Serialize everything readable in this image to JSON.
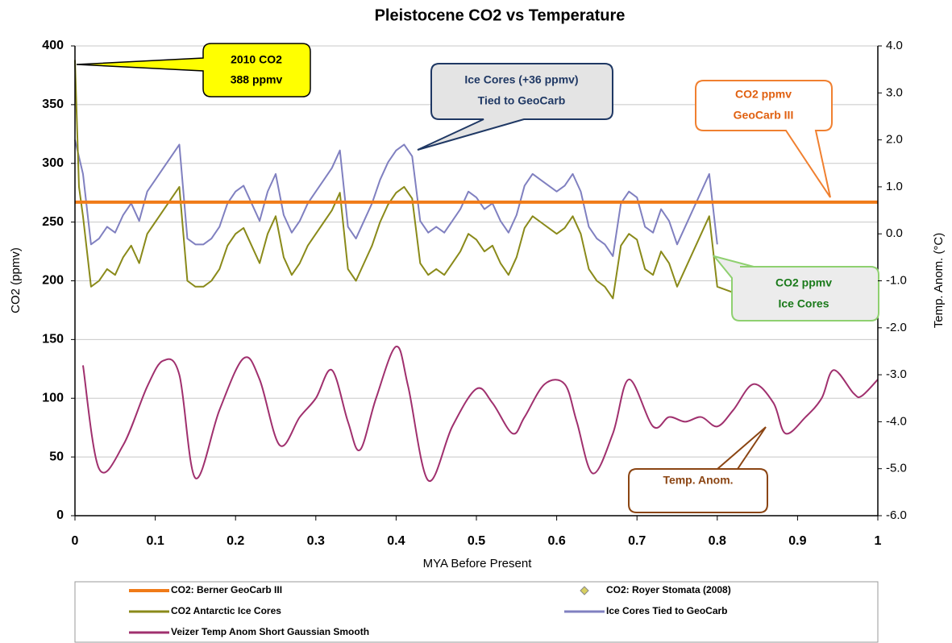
{
  "chart_data": {
    "type": "line",
    "title": "Pleistocene CO2 vs Temperature",
    "x_label": "MYA Before Present",
    "y_label": "CO2 (ppmv)",
    "y2_label": "Temp. Anom. (°C)",
    "xlim": [
      0,
      1
    ],
    "xticks": [
      0,
      0.1,
      0.2,
      0.3,
      0.4,
      0.5,
      0.6,
      0.7,
      0.8,
      0.9,
      1
    ],
    "ylim": [
      0,
      400
    ],
    "yticks": [
      0,
      50,
      100,
      150,
      200,
      250,
      300,
      350,
      400
    ],
    "y2lim": [
      -6,
      4
    ],
    "y2ticks": [
      {
        "value": -6,
        "label": "-6.0"
      },
      {
        "value": -5,
        "label": "-5.0"
      },
      {
        "value": -4,
        "label": "-4.0"
      },
      {
        "value": -3,
        "label": "-3.0"
      },
      {
        "value": -2,
        "label": "-2.0"
      },
      {
        "value": -1,
        "label": "-1.0"
      },
      {
        "value": 0,
        "label": "0.0"
      },
      {
        "value": 1,
        "label": "1.0"
      },
      {
        "value": 2,
        "label": "2.0"
      },
      {
        "value": 3,
        "label": "3.0"
      },
      {
        "value": 4,
        "label": "4.0"
      }
    ],
    "grid": true,
    "legend": "bottom",
    "series": [
      {
        "name": "CO2: Berner GeoCarb III",
        "color": "#f07b18",
        "x": [
          0,
          1
        ],
        "values": [
          267,
          267
        ]
      },
      {
        "name": "CO2: Royer Stomata (2008)",
        "color": "#d8d060",
        "marker": "diamond",
        "x": [],
        "values": []
      },
      {
        "name": "CO2 Antarctic Ice Cores",
        "color": "#8a8a1a",
        "x": [
          0,
          0.005,
          0.01,
          0.02,
          0.03,
          0.04,
          0.05,
          0.06,
          0.07,
          0.08,
          0.09,
          0.1,
          0.11,
          0.12,
          0.13,
          0.14,
          0.15,
          0.16,
          0.17,
          0.18,
          0.19,
          0.2,
          0.21,
          0.22,
          0.23,
          0.24,
          0.25,
          0.26,
          0.27,
          0.28,
          0.29,
          0.3,
          0.31,
          0.32,
          0.33,
          0.34,
          0.35,
          0.36,
          0.37,
          0.38,
          0.39,
          0.4,
          0.41,
          0.42,
          0.43,
          0.44,
          0.45,
          0.46,
          0.47,
          0.48,
          0.49,
          0.5,
          0.51,
          0.52,
          0.53,
          0.54,
          0.55,
          0.56,
          0.57,
          0.58,
          0.59,
          0.6,
          0.61,
          0.62,
          0.63,
          0.64,
          0.65,
          0.66,
          0.67,
          0.68,
          0.69,
          0.7,
          0.71,
          0.72,
          0.73,
          0.74,
          0.75,
          0.76,
          0.77,
          0.78,
          0.79,
          0.8,
          0.82
        ],
        "values": [
          388,
          280,
          255,
          195,
          200,
          210,
          205,
          220,
          230,
          215,
          240,
          250,
          260,
          270,
          280,
          200,
          195,
          195,
          200,
          210,
          230,
          240,
          245,
          230,
          215,
          240,
          255,
          220,
          205,
          215,
          230,
          240,
          250,
          260,
          275,
          210,
          200,
          215,
          230,
          250,
          265,
          275,
          280,
          270,
          215,
          205,
          210,
          205,
          215,
          225,
          240,
          235,
          225,
          230,
          215,
          205,
          220,
          245,
          255,
          250,
          245,
          240,
          245,
          255,
          240,
          210,
          200,
          195,
          185,
          230,
          240,
          235,
          210,
          205,
          225,
          215,
          195,
          210,
          225,
          240,
          255,
          195,
          190
        ]
      },
      {
        "name": "Ice Cores Tied to GeoCarb",
        "color": "#8080c0",
        "x": [
          0,
          0.01,
          0.02,
          0.03,
          0.04,
          0.05,
          0.06,
          0.07,
          0.08,
          0.09,
          0.1,
          0.11,
          0.12,
          0.13,
          0.14,
          0.15,
          0.16,
          0.17,
          0.18,
          0.19,
          0.2,
          0.21,
          0.22,
          0.23,
          0.24,
          0.25,
          0.26,
          0.27,
          0.28,
          0.29,
          0.3,
          0.31,
          0.32,
          0.33,
          0.34,
          0.35,
          0.36,
          0.37,
          0.38,
          0.39,
          0.4,
          0.41,
          0.42,
          0.43,
          0.44,
          0.45,
          0.46,
          0.47,
          0.48,
          0.49,
          0.5,
          0.51,
          0.52,
          0.53,
          0.54,
          0.55,
          0.56,
          0.57,
          0.58,
          0.59,
          0.6,
          0.61,
          0.62,
          0.63,
          0.64,
          0.65,
          0.66,
          0.67,
          0.68,
          0.69,
          0.7,
          0.71,
          0.72,
          0.73,
          0.74,
          0.75,
          0.76,
          0.77,
          0.78,
          0.79,
          0.8
        ],
        "values": [
          320,
          291,
          231,
          236,
          246,
          241,
          256,
          266,
          251,
          276,
          286,
          296,
          306,
          316,
          236,
          231,
          231,
          236,
          246,
          266,
          276,
          281,
          266,
          251,
          276,
          291,
          256,
          241,
          251,
          266,
          276,
          286,
          296,
          311,
          246,
          236,
          251,
          266,
          286,
          301,
          311,
          316,
          306,
          251,
          241,
          246,
          241,
          251,
          261,
          276,
          271,
          261,
          266,
          251,
          241,
          256,
          281,
          291,
          286,
          281,
          276,
          281,
          291,
          276,
          246,
          236,
          231,
          221,
          266,
          276,
          271,
          246,
          241,
          261,
          251,
          231,
          246,
          261,
          276,
          291,
          231
        ]
      },
      {
        "name": "Veizer Temp Anom Short Gaussian Smooth",
        "color": "#a0306e",
        "axis": "y2",
        "smooth": true,
        "x": [
          0.01,
          0.03,
          0.06,
          0.09,
          0.11,
          0.13,
          0.15,
          0.18,
          0.21,
          0.23,
          0.255,
          0.28,
          0.3,
          0.32,
          0.34,
          0.355,
          0.375,
          0.4,
          0.415,
          0.44,
          0.47,
          0.5,
          0.52,
          0.545,
          0.56,
          0.585,
          0.61,
          0.625,
          0.645,
          0.67,
          0.69,
          0.72,
          0.74,
          0.76,
          0.78,
          0.8,
          0.82,
          0.845,
          0.87,
          0.885,
          0.91,
          0.93,
          0.945,
          0.97,
          0.98,
          1
        ],
        "values": [
          -2.8,
          -5.0,
          -4.5,
          -3.25,
          -2.7,
          -3.0,
          -5.2,
          -3.75,
          -2.65,
          -3.1,
          -4.5,
          -3.9,
          -3.5,
          -2.9,
          -4.0,
          -4.6,
          -3.5,
          -2.4,
          -3.25,
          -5.25,
          -4.1,
          -3.3,
          -3.6,
          -4.25,
          -3.9,
          -3.2,
          -3.2,
          -4.0,
          -5.1,
          -4.25,
          -3.1,
          -4.1,
          -3.9,
          -4.0,
          -3.9,
          -4.1,
          -3.75,
          -3.2,
          -3.6,
          -4.25,
          -3.9,
          -3.5,
          -2.9,
          -3.4,
          -3.45,
          -3.1
        ]
      }
    ],
    "annotations": [
      {
        "lines": [
          "2010 CO2",
          "388 ppmv"
        ]
      },
      {
        "lines": [
          "Ice Cores (+36 ppmv)",
          "Tied to GeoCarb"
        ]
      },
      {
        "lines": [
          "CO2 ppmv",
          "GeoCarb III"
        ]
      },
      {
        "lines": [
          "CO2 ppmv",
          "Ice Cores"
        ]
      },
      {
        "lines": [
          "Temp. Anom."
        ]
      }
    ]
  }
}
